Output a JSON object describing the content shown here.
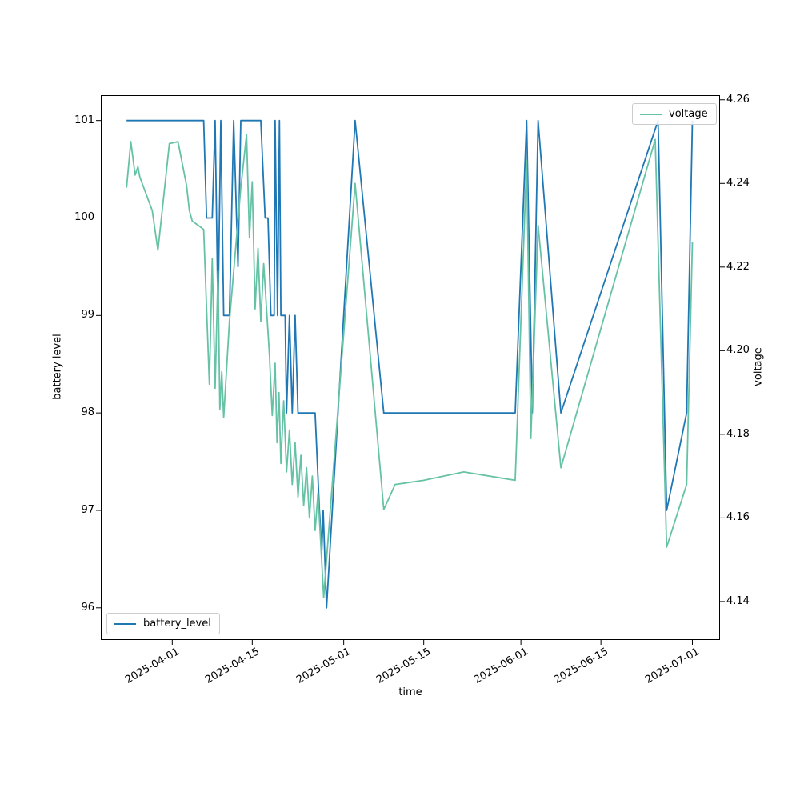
{
  "figure": {
    "background": "#ffffff"
  },
  "chart_data": {
    "type": "line",
    "title": "",
    "grid": false,
    "x_axis": {
      "label": "time",
      "ticks": [
        "2025-04-01",
        "2025-04-15",
        "2025-05-01",
        "2025-05-15",
        "2025-06-01",
        "2025-06-15",
        "2025-07-01"
      ],
      "lim": [
        "2025-03-19 12:00",
        "2025-07-05 20:00"
      ],
      "tick_rotation_deg": 30
    },
    "y_axis_left": {
      "label": "battery level",
      "ticks": [
        96,
        97,
        98,
        99,
        100,
        101
      ],
      "lim": [
        95.67,
        101.26
      ]
    },
    "y_axis_right": {
      "label": "voltage",
      "ticks": [
        4.14,
        4.16,
        4.18,
        4.2,
        4.22,
        4.24,
        4.26
      ],
      "lim": [
        4.1308,
        4.2611
      ]
    },
    "legends": [
      {
        "label": "battery_level",
        "position": "lower-left",
        "line_color": "#1f77b4"
      },
      {
        "label": "voltage",
        "position": "upper-right",
        "line_color": "#66c2a5"
      }
    ],
    "series": [
      {
        "name": "battery_level",
        "axis": "left",
        "color": "#1f77b4",
        "points": [
          [
            "2025-03-24",
            101
          ],
          [
            "2025-04-06 12:00",
            101
          ],
          [
            "2025-04-07",
            100
          ],
          [
            "2025-04-08",
            100
          ],
          [
            "2025-04-08 12:00",
            101
          ],
          [
            "2025-04-09",
            99
          ],
          [
            "2025-04-09 12:00",
            101
          ],
          [
            "2025-04-10",
            99
          ],
          [
            "2025-04-11",
            99
          ],
          [
            "2025-04-11 18:00",
            101
          ],
          [
            "2025-04-12 12:00",
            99.5
          ],
          [
            "2025-04-13",
            101
          ],
          [
            "2025-04-16 12:00",
            101
          ],
          [
            "2025-04-17 06:00",
            100
          ],
          [
            "2025-04-17 18:00",
            100
          ],
          [
            "2025-04-18 06:00",
            99
          ],
          [
            "2025-04-18 20:00",
            99
          ],
          [
            "2025-04-19",
            101
          ],
          [
            "2025-04-19 10:00",
            99
          ],
          [
            "2025-04-19 18:00",
            101
          ],
          [
            "2025-04-20",
            99
          ],
          [
            "2025-04-20 18:00",
            99
          ],
          [
            "2025-04-21",
            98
          ],
          [
            "2025-04-21 12:00",
            99
          ],
          [
            "2025-04-22",
            98
          ],
          [
            "2025-04-22 12:00",
            99
          ],
          [
            "2025-04-23",
            98
          ],
          [
            "2025-04-26",
            98
          ],
          [
            "2025-04-26 18:00",
            97
          ],
          [
            "2025-04-27 04:00",
            96.6
          ],
          [
            "2025-04-27 10:00",
            97
          ],
          [
            "2025-04-28",
            96
          ],
          [
            "2025-05-03",
            101
          ],
          [
            "2025-05-08",
            98
          ],
          [
            "2025-05-31",
            98
          ],
          [
            "2025-06-02",
            101
          ],
          [
            "2025-06-03",
            98
          ],
          [
            "2025-06-04",
            101
          ],
          [
            "2025-06-08",
            98
          ],
          [
            "2025-06-25",
            101
          ],
          [
            "2025-06-26 12:00",
            97
          ],
          [
            "2025-06-30",
            98
          ],
          [
            "2025-07-01",
            101
          ]
        ]
      },
      {
        "name": "voltage",
        "axis": "right",
        "color": "#66c2a5",
        "points": [
          [
            "2025-03-24",
            4.239
          ],
          [
            "2025-03-24 18:00",
            4.25
          ],
          [
            "2025-03-25 12:00",
            4.242
          ],
          [
            "2025-03-26",
            4.244
          ],
          [
            "2025-03-26 08:00",
            4.2415
          ],
          [
            "2025-03-28 12:00",
            4.2335
          ],
          [
            "2025-03-29 12:00",
            4.224
          ],
          [
            "2025-03-31 12:00",
            4.2495
          ],
          [
            "2025-04-02",
            4.25
          ],
          [
            "2025-04-03 12:00",
            4.2395
          ],
          [
            "2025-04-04",
            4.2335
          ],
          [
            "2025-04-04 12:00",
            4.231
          ],
          [
            "2025-04-05 12:00",
            4.23
          ],
          [
            "2025-04-06 12:00",
            4.229
          ],
          [
            "2025-04-07 12:00",
            4.192
          ],
          [
            "2025-04-08",
            4.222
          ],
          [
            "2025-04-08 12:00",
            4.191
          ],
          [
            "2025-04-09",
            4.219
          ],
          [
            "2025-04-09 08:00",
            4.186
          ],
          [
            "2025-04-09 16:00",
            4.195
          ],
          [
            "2025-04-10",
            4.184
          ],
          [
            "2025-04-11",
            4.207
          ],
          [
            "2025-04-13",
            4.239
          ],
          [
            "2025-04-14",
            4.2517
          ],
          [
            "2025-04-14 12:00",
            4.227
          ],
          [
            "2025-04-15",
            4.2404
          ],
          [
            "2025-04-15 12:00",
            4.21
          ],
          [
            "2025-04-16",
            4.2245
          ],
          [
            "2025-04-16 12:00",
            4.207
          ],
          [
            "2025-04-17",
            4.2208
          ],
          [
            "2025-04-18",
            4.199
          ],
          [
            "2025-04-18 12:00",
            4.1845
          ],
          [
            "2025-04-19",
            4.197
          ],
          [
            "2025-04-19 08:00",
            4.178
          ],
          [
            "2025-04-19 16:00",
            4.19
          ],
          [
            "2025-04-20",
            4.173
          ],
          [
            "2025-04-20 12:00",
            4.188
          ],
          [
            "2025-04-21",
            4.171
          ],
          [
            "2025-04-21 12:00",
            4.181
          ],
          [
            "2025-04-22",
            4.168
          ],
          [
            "2025-04-22 12:00",
            4.178
          ],
          [
            "2025-04-23",
            4.165
          ],
          [
            "2025-04-23 12:00",
            4.175
          ],
          [
            "2025-04-24",
            4.163
          ],
          [
            "2025-04-24 12:00",
            4.172
          ],
          [
            "2025-04-25",
            4.16
          ],
          [
            "2025-04-25 12:00",
            4.17
          ],
          [
            "2025-04-26",
            4.157
          ],
          [
            "2025-04-26 12:00",
            4.166
          ],
          [
            "2025-04-27 12:00",
            4.141
          ],
          [
            "2025-05-03",
            4.24
          ],
          [
            "2025-05-08",
            4.162
          ],
          [
            "2025-05-10",
            4.168
          ],
          [
            "2025-05-15",
            4.169
          ],
          [
            "2025-05-22",
            4.171
          ],
          [
            "2025-05-31",
            4.169
          ],
          [
            "2025-06-02",
            4.2455
          ],
          [
            "2025-06-02 18:00",
            4.179
          ],
          [
            "2025-06-04",
            4.23
          ],
          [
            "2025-06-08",
            4.172
          ],
          [
            "2025-06-24 12:00",
            4.2505
          ],
          [
            "2025-06-26 12:00",
            4.153
          ],
          [
            "2025-06-30",
            4.168
          ],
          [
            "2025-07-01",
            4.226
          ]
        ]
      }
    ]
  }
}
